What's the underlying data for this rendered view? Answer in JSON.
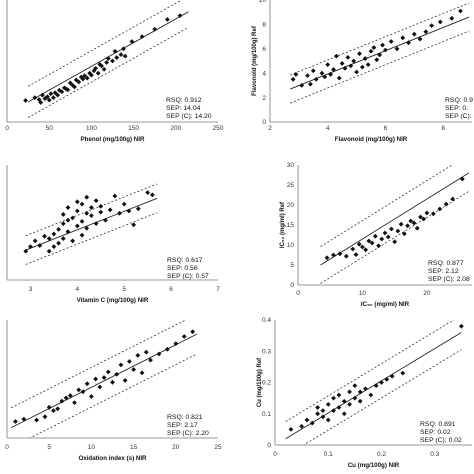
{
  "chart_data": [
    {
      "type": "scatter",
      "title": "",
      "xlabel": "Phenol (mg/100g) NIR",
      "ylabel": "",
      "xlim": [
        0,
        250
      ],
      "ylim": [
        0,
        250
      ],
      "xticks": [
        "0",
        "50",
        "100",
        "150",
        "200",
        "250"
      ],
      "yticks": [],
      "stats": [
        "RSQ: 0.912",
        "SEP: 14.04",
        "SEP (C): 14.20"
      ],
      "fit": [
        [
          25,
          41
        ],
        [
          215,
          226
        ]
      ],
      "band_offset": 32,
      "x": [
        22,
        33,
        38,
        40,
        42,
        45,
        48,
        50,
        52,
        55,
        57,
        60,
        62,
        65,
        68,
        70,
        72,
        75,
        78,
        80,
        82,
        85,
        88,
        90,
        92,
        95,
        98,
        100,
        103,
        105,
        108,
        110,
        112,
        115,
        118,
        120,
        125,
        128,
        130,
        135,
        138,
        140,
        148,
        160,
        175,
        190,
        205
      ],
      "y": [
        44,
        50,
        46,
        40,
        55,
        48,
        52,
        45,
        58,
        50,
        60,
        55,
        65,
        62,
        70,
        68,
        66,
        80,
        75,
        72,
        86,
        82,
        92,
        88,
        95,
        90,
        100,
        96,
        105,
        110,
        100,
        118,
        115,
        108,
        122,
        130,
        125,
        145,
        132,
        138,
        150,
        135,
        165,
        175,
        190,
        210,
        218
      ]
    },
    {
      "type": "scatter",
      "title": "",
      "xlabel": "Flavonoid (mg/100g) NIR",
      "ylabel": "Flavonoid (mg/100g) Ref",
      "xlim": [
        2,
        9
      ],
      "ylim": [
        0,
        10
      ],
      "xticks": [
        "2",
        "4",
        "6",
        "8"
      ],
      "yticks": [
        "0",
        "2",
        "4",
        "6",
        "8",
        "10"
      ],
      "stats": [
        "RSQ: 0.9",
        "SEP: 0.",
        "SEP (C): -"
      ],
      "fit": [
        [
          2.7,
          2.7
        ],
        [
          8.9,
          8.6
        ]
      ],
      "band_offset": 1.15,
      "x": [
        2.8,
        2.9,
        3.1,
        3.3,
        3.4,
        3.5,
        3.6,
        3.8,
        3.9,
        4.0,
        4.1,
        4.2,
        4.3,
        4.4,
        4.5,
        4.6,
        4.7,
        4.8,
        4.9,
        5.0,
        5.1,
        5.2,
        5.3,
        5.4,
        5.5,
        5.6,
        5.7,
        5.8,
        5.9,
        6.0,
        6.2,
        6.4,
        6.6,
        6.8,
        7.0,
        7.2,
        7.4,
        7.6,
        7.9,
        8.3,
        8.6
      ],
      "y": [
        3.5,
        3.9,
        3.0,
        3.8,
        3.1,
        4.2,
        3.5,
        4.0,
        3.7,
        4.7,
        3.9,
        4.3,
        5.4,
        3.6,
        4.8,
        4.4,
        5.3,
        4.6,
        5.0,
        4.1,
        5.6,
        4.5,
        5.2,
        4.7,
        5.8,
        6.1,
        5.1,
        5.5,
        6.3,
        5.9,
        6.6,
        6.0,
        6.9,
        6.5,
        7.2,
        6.8,
        7.4,
        7.9,
        8.2,
        8.5,
        9.1
      ]
    },
    {
      "type": "scatter",
      "title": "",
      "xlabel": "Vitamin C (mg/100g) NIR",
      "ylabel": "",
      "xlim": [
        2.5,
        7
      ],
      "ylim": [
        0,
        10
      ],
      "xticks": [
        "3",
        "4",
        "5",
        "6",
        "7"
      ],
      "yticks": [],
      "stats": [
        "RSQ: 0.617",
        "SEP: 0.56",
        "SEP (C): 0.57"
      ],
      "fit": [
        [
          2.9,
          2.6
        ],
        [
          5.7,
          7.1
        ]
      ],
      "band_offset": 1.25,
      "x": [
        2.9,
        3.0,
        3.1,
        3.2,
        3.3,
        3.4,
        3.4,
        3.5,
        3.5,
        3.6,
        3.6,
        3.7,
        3.7,
        3.7,
        3.8,
        3.8,
        3.8,
        3.9,
        3.9,
        4.0,
        4.0,
        4.0,
        4.1,
        4.1,
        4.1,
        4.2,
        4.2,
        4.2,
        4.3,
        4.3,
        4.4,
        4.4,
        4.5,
        4.5,
        4.6,
        4.7,
        4.8,
        4.9,
        5.0,
        5.1,
        5.2,
        5.3,
        5.5,
        5.6
      ],
      "y": [
        2.5,
        2.9,
        3.4,
        3.0,
        3.8,
        2.5,
        3.6,
        4.0,
        2.9,
        4.4,
        3.2,
        4.9,
        3.6,
        5.7,
        4.2,
        5.2,
        6.3,
        3.4,
        5.4,
        4.7,
        6.0,
        6.8,
        3.9,
        5.1,
        6.6,
        5.8,
        4.5,
        7.2,
        5.6,
        6.3,
        4.9,
        6.9,
        5.9,
        6.4,
        5.2,
        6.1,
        7.3,
        5.8,
        6.6,
        6.0,
        4.8,
        6.2,
        7.6,
        7.4
      ]
    },
    {
      "type": "scatter",
      "title": "",
      "xlabel": "IC₅₀ (mg/ml) NIR",
      "ylabel": "IC₅₀ (mg/ml) Ref",
      "xlim": [
        0,
        27
      ],
      "ylim": [
        0,
        30
      ],
      "xticks": [
        "0",
        "10",
        "20"
      ],
      "yticks": [
        "0",
        "5",
        "10",
        "15",
        "20",
        "25",
        "30"
      ],
      "stats": [
        "RSQ: 0.877",
        "SEP: 2.12",
        "SEP (C): 2.08"
      ],
      "fit": [
        [
          3.5,
          5.0
        ],
        [
          26.5,
          28.0
        ]
      ],
      "band_offset": 4.6,
      "x": [
        4.5,
        5.5,
        6.5,
        7.5,
        8.5,
        9.0,
        9.5,
        10.0,
        10.5,
        11.0,
        11.5,
        12.0,
        12.5,
        13.0,
        13.5,
        14.0,
        14.5,
        15.0,
        15.5,
        16.0,
        16.5,
        17.0,
        17.5,
        18.0,
        18.5,
        19.0,
        19.5,
        20.0,
        21.0,
        22.0,
        23.0,
        24.0,
        25.5
      ],
      "y": [
        6.8,
        7.5,
        7.8,
        7.2,
        9.0,
        7.6,
        10.2,
        9.5,
        8.8,
        11.0,
        10.5,
        12.2,
        9.8,
        11.5,
        13.0,
        12.0,
        14.0,
        10.8,
        13.5,
        15.2,
        12.8,
        14.8,
        16.0,
        15.5,
        14.2,
        17.0,
        16.5,
        18.0,
        17.8,
        19.0,
        20.2,
        21.5,
        26.5
      ]
    },
    {
      "type": "scatter",
      "title": "",
      "xlabel": "Oxidation index (s) NIR",
      "ylabel": "",
      "xlim": [
        0,
        25
      ],
      "ylim": [
        0,
        25
      ],
      "xticks": [
        "0",
        "5",
        "10",
        "15",
        "20",
        "25"
      ],
      "yticks": [],
      "stats": [
        "RSQ: 0.821",
        "SEP: 2.17",
        "SEP (C): 2.20"
      ],
      "fit": [
        [
          0.5,
          2.2
        ],
        [
          22.5,
          22.0
        ]
      ],
      "band_offset": 4.2,
      "x": [
        1.0,
        2.0,
        3.5,
        4.5,
        5.0,
        5.5,
        6.0,
        6.5,
        7.0,
        7.5,
        8.0,
        8.5,
        9.0,
        9.5,
        10.0,
        10.5,
        11.0,
        11.5,
        12.0,
        12.5,
        13.0,
        13.5,
        14.0,
        14.5,
        15.0,
        15.5,
        16.0,
        16.5,
        17.0,
        18.0,
        19.0,
        20.0,
        21.0,
        22.0
      ],
      "y": [
        3.5,
        4.0,
        3.8,
        4.5,
        6.5,
        5.8,
        6.2,
        7.8,
        8.5,
        9.0,
        7.5,
        10.2,
        9.8,
        11.5,
        8.8,
        12.5,
        10.8,
        12.8,
        14.0,
        11.8,
        13.5,
        15.5,
        12.2,
        16.2,
        14.5,
        17.5,
        13.8,
        18.2,
        16.5,
        17.8,
        18.8,
        20.0,
        21.5,
        22.5
      ]
    },
    {
      "type": "scatter",
      "title": "",
      "xlabel": "Cu (mg/100g) NIR",
      "ylabel": "Cu (mg/100g) Ref",
      "xlim": [
        0,
        0.37
      ],
      "ylim": [
        0,
        0.4
      ],
      "xticks": [
        "0",
        "0.1",
        "0.2",
        "0.3"
      ],
      "yticks": [
        "0",
        "0.1",
        "0.2",
        "0.3",
        "0.4"
      ],
      "stats": [
        "RSQ: 0.891",
        "SEP: 0.02",
        "SEP (C): 0.02"
      ],
      "fit": [
        [
          0.02,
          0.02
        ],
        [
          0.35,
          0.36
        ]
      ],
      "band_offset": 0.055,
      "x": [
        0.03,
        0.05,
        0.06,
        0.07,
        0.08,
        0.08,
        0.09,
        0.09,
        0.1,
        0.1,
        0.11,
        0.11,
        0.12,
        0.12,
        0.13,
        0.13,
        0.14,
        0.14,
        0.15,
        0.15,
        0.16,
        0.16,
        0.17,
        0.18,
        0.19,
        0.2,
        0.21,
        0.22,
        0.24,
        0.35
      ],
      "y": [
        0.05,
        0.06,
        0.08,
        0.07,
        0.1,
        0.12,
        0.09,
        0.11,
        0.13,
        0.08,
        0.15,
        0.11,
        0.12,
        0.16,
        0.14,
        0.1,
        0.17,
        0.13,
        0.15,
        0.19,
        0.14,
        0.17,
        0.18,
        0.16,
        0.19,
        0.2,
        0.21,
        0.22,
        0.23,
        0.38
      ]
    }
  ]
}
